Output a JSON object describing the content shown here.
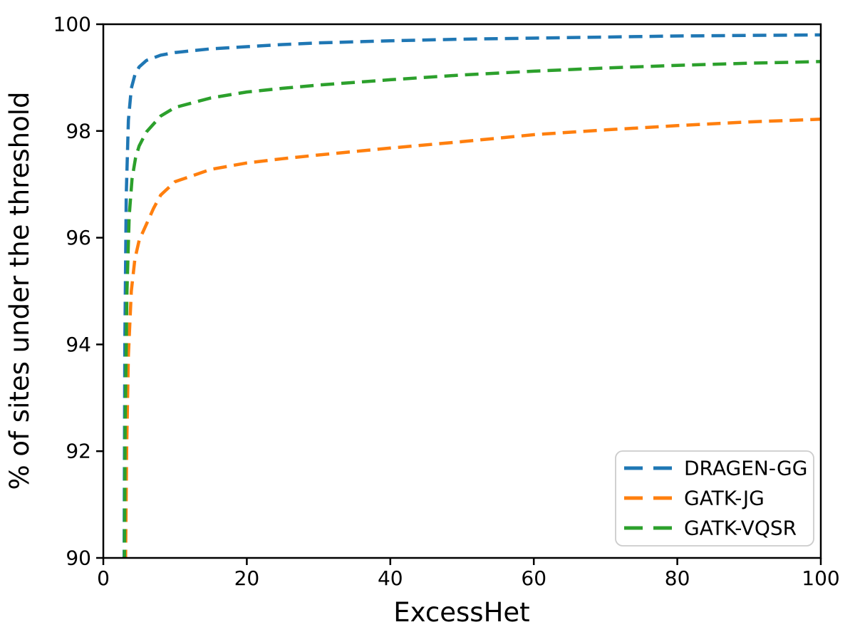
{
  "chart_data": {
    "type": "line",
    "title": "",
    "xlabel": "ExcessHet",
    "ylabel": "% of sites under the threshold",
    "xlim": [
      0,
      100
    ],
    "ylim": [
      90,
      100
    ],
    "xticks": [
      0,
      20,
      40,
      60,
      80,
      100
    ],
    "yticks": [
      90,
      92,
      94,
      96,
      98,
      100
    ],
    "grid": false,
    "line_style": "dashed",
    "legend_position": "lower right",
    "axis_color": "#000000",
    "legend_border_color": "#cccccc",
    "legend_bg_color": "#ffffff",
    "series": [
      {
        "name": "DRAGEN-GG",
        "color": "#1f77b4",
        "x": [
          2.9,
          3.0,
          3.2,
          3.5,
          3.9,
          4.4,
          5,
          6,
          8,
          10,
          15,
          20,
          25,
          30,
          40,
          50,
          60,
          70,
          80,
          90,
          100
        ],
        "y": [
          89.9,
          94.0,
          96.8,
          98.2,
          98.8,
          99.05,
          99.2,
          99.32,
          99.42,
          99.47,
          99.54,
          99.58,
          99.62,
          99.65,
          99.69,
          99.72,
          99.74,
          99.76,
          99.78,
          99.79,
          99.8
        ]
      },
      {
        "name": "GATK-JG",
        "color": "#ff7f0e",
        "x": [
          3.1,
          3.25,
          3.5,
          3.9,
          4.4,
          5,
          6,
          7,
          8,
          10,
          15,
          20,
          25,
          30,
          40,
          50,
          60,
          70,
          80,
          90,
          100
        ],
        "y": [
          89.9,
          92.0,
          93.8,
          95.0,
          95.6,
          95.95,
          96.25,
          96.55,
          96.8,
          97.05,
          97.28,
          97.4,
          97.48,
          97.55,
          97.68,
          97.8,
          97.93,
          98.02,
          98.1,
          98.17,
          98.22
        ]
      },
      {
        "name": "GATK-VQSR",
        "color": "#2ca02c",
        "x": [
          2.95,
          3.05,
          3.3,
          3.6,
          4.0,
          4.5,
          5,
          6,
          8,
          10,
          15,
          20,
          25,
          30,
          40,
          50,
          60,
          70,
          80,
          90,
          100
        ],
        "y": [
          89.9,
          92.5,
          95.0,
          96.4,
          97.1,
          97.5,
          97.72,
          97.98,
          98.28,
          98.44,
          98.62,
          98.73,
          98.8,
          98.86,
          98.96,
          99.05,
          99.12,
          99.18,
          99.23,
          99.27,
          99.3
        ]
      }
    ]
  }
}
